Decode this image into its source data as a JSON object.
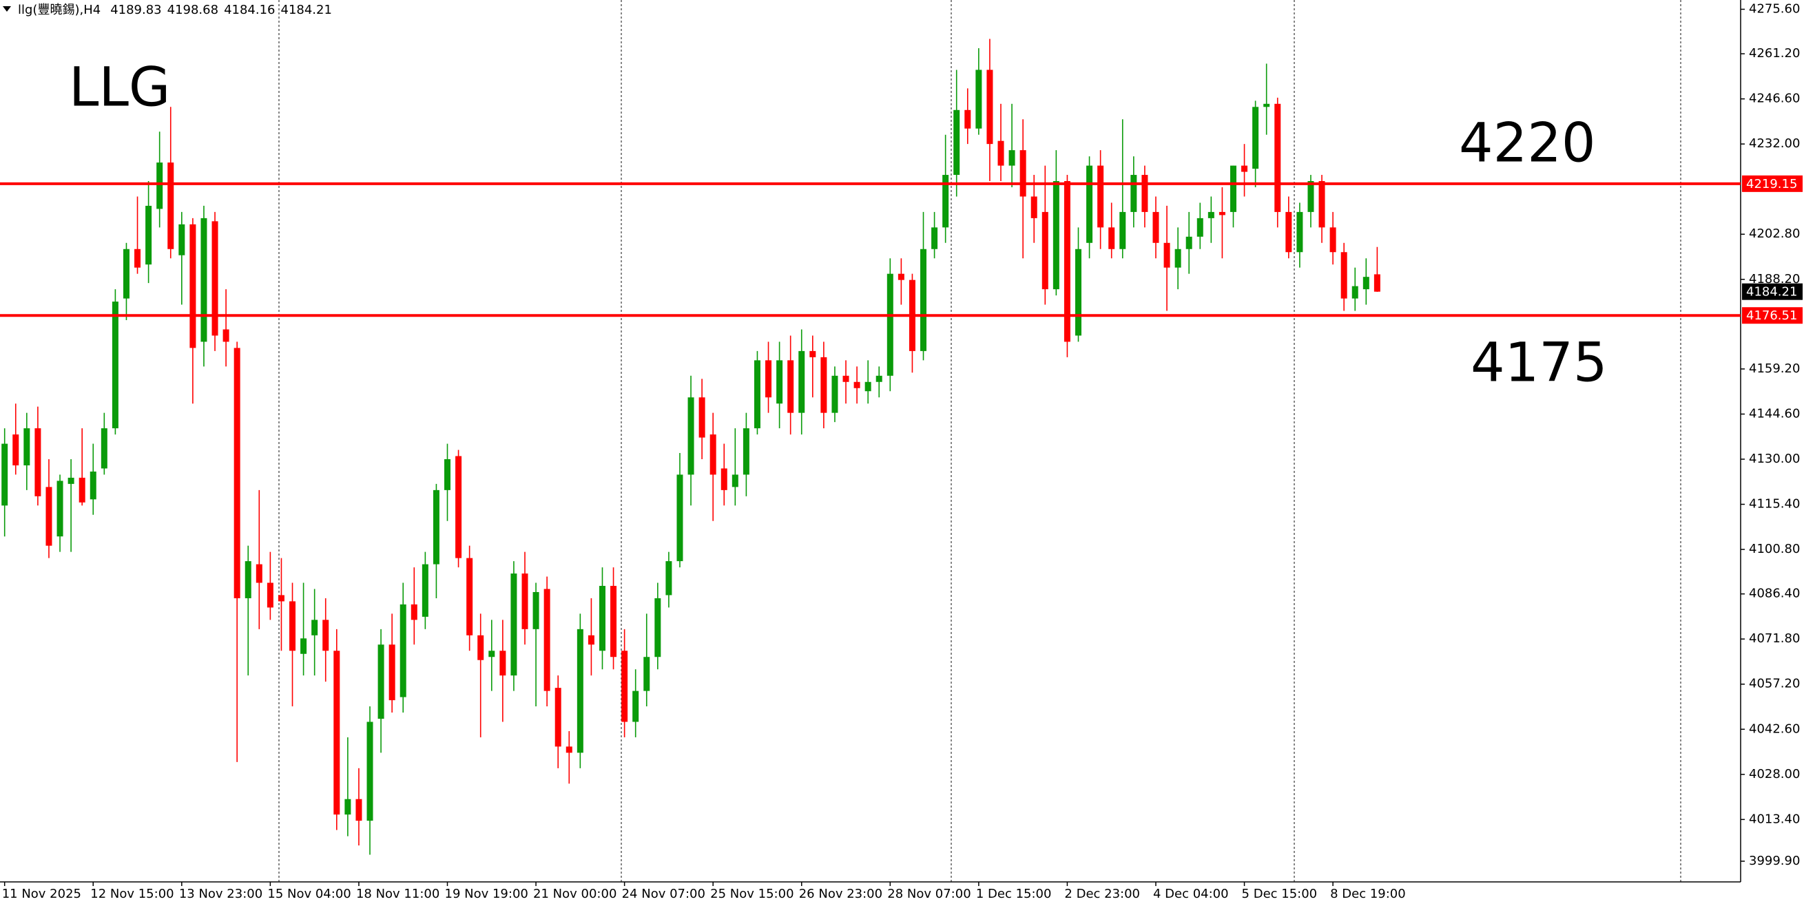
{
  "chart_data": {
    "type": "candlestick",
    "title": "llg(豐曉錫),H4",
    "categories": [
      "11 Nov 2025",
      null,
      null,
      null,
      null,
      null,
      null,
      null,
      "12 Nov 15:00",
      null,
      null,
      null,
      null,
      null,
      null,
      null,
      "13 Nov 23:00",
      null,
      null,
      null,
      null,
      null,
      null,
      null,
      "15 Nov 04:00",
      null,
      null,
      null,
      null,
      null,
      null,
      null,
      "18 Nov 11:00",
      null,
      null,
      null,
      null,
      null,
      null,
      null,
      "19 Nov 19:00",
      null,
      null,
      null,
      null,
      null,
      null,
      null,
      "21 Nov 00:00",
      null,
      null,
      null,
      null,
      null,
      null,
      null,
      "24 Nov 07:00",
      null,
      null,
      null,
      null,
      null,
      null,
      null,
      "25 Nov 15:00",
      null,
      null,
      null,
      null,
      null,
      null,
      null,
      "26 Nov 23:00",
      null,
      null,
      null,
      null,
      null,
      null,
      null,
      "28 Nov 07:00",
      null,
      null,
      null,
      null,
      null,
      null,
      null,
      "1 Dec 15:00",
      null,
      null,
      null,
      null,
      null,
      null,
      null,
      "2 Dec 23:00",
      null,
      null,
      null,
      null,
      null,
      null,
      null,
      "4 Dec 04:00",
      null,
      null,
      null,
      null,
      null,
      null,
      null,
      "5 Dec 15:00",
      null,
      null,
      null,
      null,
      null,
      null,
      null,
      "8 Dec 19:00",
      null,
      null,
      null,
      null
    ],
    "open": [
      4115,
      4138,
      4128,
      4140,
      4121,
      4105,
      4122,
      4124,
      4117,
      4127,
      4140,
      4182,
      4198,
      4193,
      4211,
      4226,
      4196,
      4206,
      4168,
      4207,
      4172,
      4166,
      4085,
      4096,
      4090,
      4086,
      4084,
      4067,
      4073,
      4078,
      4068,
      4015,
      4020,
      4013,
      4046,
      4070,
      4053,
      4083,
      4079,
      4096,
      4120,
      4131,
      4098,
      4073,
      4066,
      4068,
      4060,
      4093,
      4075,
      4088,
      4056,
      4037,
      4035,
      4073,
      4068,
      4089,
      4068,
      4045,
      4055,
      4066,
      4086,
      4097,
      4125,
      4150,
      4138,
      4127,
      4121,
      4125,
      4140,
      4162,
      4148,
      4162,
      4145,
      4165,
      4163,
      4145,
      4157,
      4155,
      4152,
      4155,
      4157,
      4190,
      4188,
      4165,
      4198,
      4205,
      4222,
      4243,
      4237,
      4256,
      4233,
      4225,
      4230,
      4215,
      4210,
      4185,
      4220,
      4170,
      4200,
      4225,
      4205,
      4198,
      4210,
      4222,
      4210,
      4200,
      4192,
      4198,
      4202,
      4208,
      4210,
      4210,
      4225,
      4224,
      4244,
      4245,
      4210,
      4197,
      4210,
      4220,
      4205,
      4197,
      4182,
      4185,
      4189.83
    ],
    "high": [
      4140,
      4148,
      4145,
      4147,
      4130,
      4125,
      4130,
      4140,
      4135,
      4145,
      4185,
      4200,
      4215,
      4220,
      4236,
      4244,
      4210,
      4208,
      4212,
      4210,
      4185,
      4168,
      4102,
      4120,
      4100,
      4098,
      4090,
      4090,
      4088,
      4085,
      4075,
      4040,
      4030,
      4050,
      4075,
      4080,
      4090,
      4095,
      4100,
      4122,
      4135,
      4133,
      4102,
      4080,
      4078,
      4078,
      4097,
      4100,
      4090,
      4092,
      4060,
      4042,
      4080,
      4085,
      4095,
      4095,
      4075,
      4062,
      4080,
      4090,
      4100,
      4132,
      4157,
      4156,
      4145,
      4135,
      4140,
      4145,
      4165,
      4168,
      4168,
      4170,
      4172,
      4170,
      4168,
      4160,
      4162,
      4160,
      4162,
      4160,
      4195,
      4195,
      4190,
      4210,
      4210,
      4235,
      4256,
      4250,
      4263,
      4266,
      4245,
      4245,
      4240,
      4222,
      4225,
      4230,
      4222,
      4205,
      4228,
      4230,
      4213,
      4240,
      4228,
      4225,
      4215,
      4212,
      4205,
      4210,
      4213,
      4215,
      4218,
      4225,
      4232,
      4246,
      4258,
      4247,
      4215,
      4213,
      4222,
      4222,
      4210,
      4200,
      4192,
      4195,
      4198.68
    ],
    "low": [
      4105,
      4125,
      4120,
      4115,
      4098,
      4100,
      4100,
      4115,
      4112,
      4125,
      4138,
      4175,
      4190,
      4187,
      4205,
      4195,
      4180,
      4148,
      4160,
      4165,
      4160,
      4032,
      4060,
      4075,
      4078,
      4068,
      4050,
      4060,
      4060,
      4058,
      4010,
      4008,
      4005,
      4002,
      4035,
      4048,
      4048,
      4070,
      4075,
      4085,
      4110,
      4095,
      4068,
      4040,
      4055,
      4045,
      4055,
      4070,
      4050,
      4050,
      4030,
      4025,
      4030,
      4060,
      4062,
      4062,
      4040,
      4040,
      4050,
      4062,
      4082,
      4095,
      4115,
      4130,
      4110,
      4115,
      4115,
      4118,
      4138,
      4145,
      4140,
      4138,
      4138,
      4150,
      4140,
      4142,
      4148,
      4148,
      4148,
      4150,
      4152,
      4180,
      4158,
      4162,
      4195,
      4200,
      4215,
      4232,
      4235,
      4220,
      4220,
      4218,
      4195,
      4200,
      4180,
      4183,
      4163,
      4168,
      4195,
      4198,
      4195,
      4195,
      4205,
      4205,
      4195,
      4178,
      4185,
      4190,
      4198,
      4200,
      4195,
      4205,
      4215,
      4218,
      4235,
      4205,
      4195,
      4192,
      4205,
      4200,
      4193,
      4178,
      4178,
      4180,
      4184.16
    ],
    "close": [
      4135,
      4128,
      4140,
      4118,
      4102,
      4123,
      4124,
      4116,
      4126,
      4140,
      4181,
      4198,
      4192,
      4212,
      4226,
      4198,
      4206,
      4166,
      4208,
      4170,
      4168,
      4085,
      4097,
      4090,
      4082,
      4084,
      4068,
      4072,
      4078,
      4068,
      4015,
      4020,
      4013,
      4045,
      4070,
      4052,
      4083,
      4078,
      4096,
      4120,
      4130,
      4098,
      4073,
      4065,
      4068,
      4060,
      4093,
      4075,
      4087,
      4055,
      4037,
      4035,
      4075,
      4070,
      4089,
      4066,
      4045,
      4055,
      4066,
      4085,
      4097,
      4125,
      4150,
      4137,
      4125,
      4120,
      4125,
      4140,
      4162,
      4150,
      4162,
      4145,
      4165,
      4163,
      4145,
      4157,
      4155,
      4153,
      4155,
      4157,
      4190,
      4188,
      4165,
      4198,
      4205,
      4222,
      4243,
      4237,
      4256,
      4232,
      4225,
      4230,
      4215,
      4208,
      4185,
      4220,
      4168,
      4198,
      4225,
      4205,
      4198,
      4210,
      4222,
      4210,
      4200,
      4192,
      4198,
      4202,
      4208,
      4210,
      4209,
      4225,
      4223,
      4244,
      4245,
      4210,
      4197,
      4210,
      4220,
      4205,
      4197,
      4182,
      4186,
      4189,
      4184.21
    ],
    "up_color": "#0a9b0a",
    "down_color": "#ff0000",
    "ylim": [
      3993.2,
      4278.6
    ],
    "yticks": [
      {
        "value": 4275.6,
        "label": "4275.60"
      },
      {
        "value": 4261.2,
        "label": "4261.20"
      },
      {
        "value": 4246.6,
        "label": "4246.60"
      },
      {
        "value": 4232,
        "label": "4232.00"
      },
      {
        "value": 4202.8,
        "label": "4202.80"
      },
      {
        "value": 4188.2,
        "label": "4188.20"
      },
      {
        "value": 4159.2,
        "label": "4159.20"
      },
      {
        "value": 4144.6,
        "label": "4144.60"
      },
      {
        "value": 4130,
        "label": "4130.00"
      },
      {
        "value": 4115.4,
        "label": "4115.40"
      },
      {
        "value": 4100.8,
        "label": "4100.80"
      },
      {
        "value": 4086.4,
        "label": "4086.40"
      },
      {
        "value": 4071.8,
        "label": "4071.80"
      },
      {
        "value": 4057.2,
        "label": "4057.20"
      },
      {
        "value": 4042.6,
        "label": "4042.60"
      },
      {
        "value": 4028,
        "label": "4028.00"
      },
      {
        "value": 4013.4,
        "label": "4013.40"
      },
      {
        "value": 3999.9,
        "label": "3999.90"
      }
    ],
    "hlines": [
      4219.15,
      4176.51
    ],
    "hline_color": "#ff0000",
    "annotations": [
      "LLG",
      "4220",
      "4175"
    ]
  }
}
